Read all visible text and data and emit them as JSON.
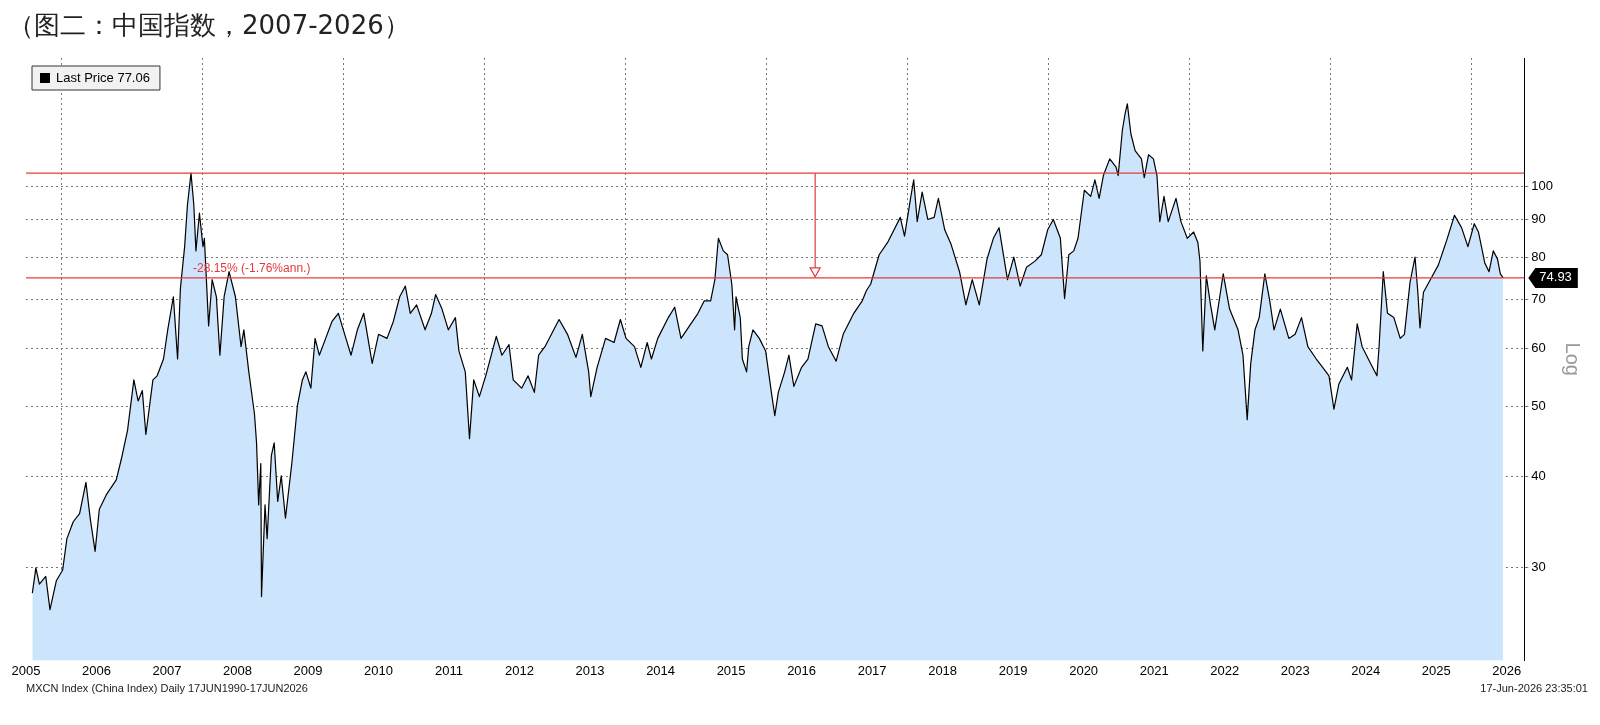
{
  "chart_data": {
    "type": "area",
    "title": "（图二：中国指数，2007-2026）",
    "ylabel": "Log",
    "log": true,
    "grid": true,
    "legend": "top left",
    "line_style": "solid",
    "xlim": [
      2005.5,
      2026.75
    ],
    "ylim": [
      22.4,
      150
    ],
    "xticks": [
      {
        "value": 2005.5,
        "label": "2005"
      },
      {
        "value": 2006,
        "label": null
      },
      {
        "value": 2006.5,
        "label": "2006"
      },
      {
        "value": 2007.5,
        "label": "2007"
      },
      {
        "value": 2008,
        "label": null
      },
      {
        "value": 2008.5,
        "label": "2008"
      },
      {
        "value": 2009.5,
        "label": "2009"
      },
      {
        "value": 2010,
        "label": null
      },
      {
        "value": 2010.5,
        "label": "2010"
      },
      {
        "value": 2011.5,
        "label": "2011"
      },
      {
        "value": 2012,
        "label": null
      },
      {
        "value": 2012.5,
        "label": "2012"
      },
      {
        "value": 2013.5,
        "label": "2013"
      },
      {
        "value": 2014,
        "label": null
      },
      {
        "value": 2014.5,
        "label": "2014"
      },
      {
        "value": 2015.5,
        "label": "2015"
      },
      {
        "value": 2016,
        "label": null
      },
      {
        "value": 2016.5,
        "label": "2016"
      },
      {
        "value": 2017.5,
        "label": "2017"
      },
      {
        "value": 2018,
        "label": null
      },
      {
        "value": 2018.5,
        "label": "2018"
      },
      {
        "value": 2019.5,
        "label": "2019"
      },
      {
        "value": 2020,
        "label": null
      },
      {
        "value": 2020.5,
        "label": "2020"
      },
      {
        "value": 2021.5,
        "label": "2021"
      },
      {
        "value": 2022,
        "label": null
      },
      {
        "value": 2022.5,
        "label": "2022"
      },
      {
        "value": 2023.5,
        "label": "2023"
      },
      {
        "value": 2024,
        "label": null
      },
      {
        "value": 2024.5,
        "label": "2024"
      },
      {
        "value": 2025.5,
        "label": "2025"
      },
      {
        "value": 2026,
        "label": null
      },
      {
        "value": 2026.5,
        "label": "2026"
      }
    ],
    "yticks": [
      30,
      40,
      50,
      60,
      70,
      80,
      90,
      100
    ],
    "ref_lines": [
      {
        "axis": "y",
        "value": 104.28,
        "color": "#e03c3c"
      },
      {
        "axis": "y",
        "value": 74.93,
        "label": "74.93",
        "color": "#e03c3c"
      }
    ],
    "annotations": [
      {
        "text": "-28.15% (-1.76%ann.)",
        "x": 2007.84,
        "y": 74.93
      },
      "MXCN Index (China Index) Daily 17JUN1990-17JUN2026",
      "17-Jun-2026 23:35:01"
    ],
    "x": [
      2005.59,
      2005.64,
      2005.69,
      2005.78,
      2005.84,
      2005.93,
      2006.02,
      2006.08,
      2006.17,
      2006.26,
      2006.35,
      2006.41,
      2006.48,
      2006.54,
      2006.64,
      2006.78,
      2006.85,
      2006.94,
      2007.03,
      2007.09,
      2007.15,
      2007.2,
      2007.3,
      2007.36,
      2007.45,
      2007.51,
      2007.59,
      2007.65,
      2007.69,
      2007.75,
      2007.79,
      2007.84,
      2007.88,
      2007.91,
      2007.96,
      2008.01,
      2008.03,
      2008.09,
      2008.14,
      2008.2,
      2008.25,
      2008.31,
      2008.38,
      2008.47,
      2008.55,
      2008.59,
      2008.66,
      2008.74,
      2008.77,
      2008.8,
      2008.83,
      2008.84,
      2008.89,
      2008.92,
      2008.98,
      2009.02,
      2009.07,
      2009.12,
      2009.18,
      2009.27,
      2009.35,
      2009.42,
      2009.47,
      2009.54,
      2009.6,
      2009.66,
      2009.75,
      2009.84,
      2009.93,
      2010.02,
      2010.11,
      2010.2,
      2010.29,
      2010.41,
      2010.5,
      2010.62,
      2010.71,
      2010.8,
      2010.88,
      2010.95,
      2011.04,
      2011.16,
      2011.25,
      2011.31,
      2011.4,
      2011.49,
      2011.59,
      2011.64,
      2011.73,
      2011.79,
      2011.85,
      2011.93,
      2012.02,
      2012.17,
      2012.25,
      2012.35,
      2012.41,
      2012.53,
      2012.62,
      2012.71,
      2012.77,
      2012.86,
      2013.06,
      2013.18,
      2013.3,
      2013.39,
      2013.48,
      2013.51,
      2013.6,
      2013.72,
      2013.84,
      2013.93,
      2014.01,
      2014.13,
      2014.22,
      2014.31,
      2014.37,
      2014.46,
      2014.61,
      2014.7,
      2014.79,
      2014.91,
      2015.03,
      2015.12,
      2015.21,
      2015.27,
      2015.32,
      2015.39,
      2015.45,
      2015.51,
      2015.55,
      2015.57,
      2015.63,
      2015.66,
      2015.72,
      2015.75,
      2015.81,
      2015.9,
      2015.99,
      2016.08,
      2016.12,
      2016.17,
      2016.26,
      2016.32,
      2016.39,
      2016.5,
      2016.59,
      2016.7,
      2016.79,
      2016.88,
      2016.99,
      2017.09,
      2017.24,
      2017.36,
      2017.42,
      2017.48,
      2017.6,
      2017.72,
      2017.9,
      2017.96,
      2018.05,
      2018.09,
      2018.14,
      2018.21,
      2018.29,
      2018.38,
      2018.44,
      2018.53,
      2018.62,
      2018.74,
      2018.83,
      2018.92,
      2019.02,
      2019.13,
      2019.22,
      2019.3,
      2019.42,
      2019.51,
      2019.6,
      2019.69,
      2019.81,
      2019.9,
      2019.99,
      2020.07,
      2020.17,
      2020.23,
      2020.29,
      2020.36,
      2020.42,
      2020.51,
      2020.6,
      2020.66,
      2020.72,
      2020.78,
      2020.87,
      2020.96,
      2020.99,
      2021.05,
      2021.09,
      2021.12,
      2021.17,
      2021.23,
      2021.32,
      2021.36,
      2021.42,
      2021.49,
      2021.54,
      2021.58,
      2021.64,
      2021.7,
      2021.81,
      2021.88,
      2021.97,
      2022.06,
      2022.12,
      2022.15,
      2022.19,
      2022.24,
      2022.3,
      2022.36,
      2022.44,
      2022.48,
      2022.57,
      2022.69,
      2022.76,
      2022.82,
      2022.87,
      2022.93,
      2022.99,
      2023.07,
      2023.14,
      2023.2,
      2023.29,
      2023.41,
      2023.5,
      2023.59,
      2023.68,
      2023.8,
      2023.89,
      2023.98,
      2024.05,
      2024.12,
      2024.24,
      2024.3,
      2024.38,
      2024.45,
      2024.57,
      2024.66,
      2024.69,
      2024.75,
      2024.81,
      2024.9,
      2024.99,
      2025.05,
      2025.13,
      2025.2,
      2025.24,
      2025.27,
      2025.32,
      2025.43,
      2025.53,
      2025.65,
      2025.76,
      2025.86,
      2025.95,
      2026.04,
      2026.1,
      2026.19,
      2026.25,
      2026.31,
      2026.37,
      2026.41,
      2026.45
    ],
    "series": [
      {
        "name": "Last Price 77.06",
        "color": "#000000",
        "values": [
          27.7,
          30.0,
          28.5,
          29.2,
          26.3,
          28.8,
          29.8,
          32.9,
          34.7,
          35.6,
          39.3,
          35.1,
          31.6,
          36.1,
          37.8,
          39.6,
          42.2,
          46.3,
          54.3,
          50.8,
          52.5,
          45.7,
          54.3,
          55.0,
          58.0,
          63.6,
          70.6,
          58.0,
          72.5,
          82.7,
          94.4,
          104.28,
          94.4,
          81.6,
          91.9,
          82.7,
          84.9,
          64.4,
          74.5,
          70.6,
          58.7,
          70.6,
          76.4,
          70.6,
          60.3,
          63.6,
          55.7,
          48.8,
          44.5,
          36.6,
          41.7,
          27.4,
          36.6,
          32.9,
          42.8,
          44.5,
          37.0,
          40.1,
          35.1,
          41.7,
          50.1,
          54.3,
          55.7,
          52.9,
          61.9,
          58.7,
          61.9,
          65.3,
          67.0,
          62.7,
          58.7,
          63.6,
          67.0,
          57.2,
          62.7,
          61.9,
          65.3,
          70.6,
          73.0,
          67.0,
          68.8,
          63.6,
          67.0,
          71.1,
          67.9,
          63.6,
          66.1,
          59.5,
          55.7,
          45.1,
          54.3,
          51.5,
          55.0,
          62.3,
          58.7,
          60.7,
          54.3,
          52.9,
          55.0,
          52.2,
          58.7,
          60.3,
          65.7,
          62.7,
          58.3,
          62.7,
          55.7,
          51.5,
          56.5,
          61.9,
          61.1,
          65.7,
          61.9,
          60.3,
          56.5,
          61.1,
          58.0,
          61.9,
          66.1,
          68.3,
          61.9,
          64.4,
          67.0,
          69.7,
          69.7,
          74.5,
          84.9,
          81.6,
          80.6,
          73.5,
          63.6,
          70.6,
          66.1,
          58.0,
          55.7,
          60.3,
          63.6,
          61.9,
          59.5,
          51.5,
          48.5,
          52.2,
          55.7,
          58.7,
          53.2,
          56.5,
          58.0,
          64.8,
          64.4,
          60.3,
          57.6,
          62.7,
          67.0,
          69.7,
          72.0,
          73.5,
          80.6,
          83.8,
          90.7,
          85.5,
          96.9,
          102.1,
          89.5,
          98.2,
          90.1,
          90.7,
          96.3,
          87.2,
          83.3,
          76.4,
          68.8,
          74.5,
          68.8,
          79.5,
          84.9,
          87.8,
          74.5,
          80.0,
          73.0,
          77.5,
          79.0,
          80.6,
          87.2,
          90.1,
          84.9,
          70.2,
          80.6,
          81.6,
          84.9,
          98.8,
          96.9,
          102.1,
          96.3,
          103.5,
          109.1,
          106.3,
          103.5,
          119.6,
          126.1,
          129.8,
          118.1,
          112.0,
          109.1,
          102.8,
          110.5,
          109.1,
          103.5,
          89.5,
          96.9,
          89.5,
          96.3,
          89.5,
          84.9,
          86.6,
          83.8,
          79.0,
          59.5,
          75.4,
          68.8,
          63.6,
          71.6,
          75.9,
          67.9,
          63.6,
          58.7,
          47.9,
          57.2,
          63.6,
          66.1,
          75.9,
          69.7,
          63.6,
          67.9,
          61.9,
          62.7,
          66.1,
          60.3,
          58.0,
          56.5,
          55.0,
          49.5,
          53.6,
          56.5,
          54.3,
          64.8,
          60.3,
          57.2,
          55.0,
          60.3,
          76.4,
          67.0,
          66.1,
          61.9,
          62.7,
          74.0,
          80.0,
          71.6,
          64.0,
          71.6,
          74.9,
          78.0,
          84.4,
          91.3,
          87.8,
          82.7,
          88.9,
          86.6,
          78.5,
          76.4,
          81.6,
          79.5,
          75.9,
          74.93
        ]
      }
    ]
  }
}
